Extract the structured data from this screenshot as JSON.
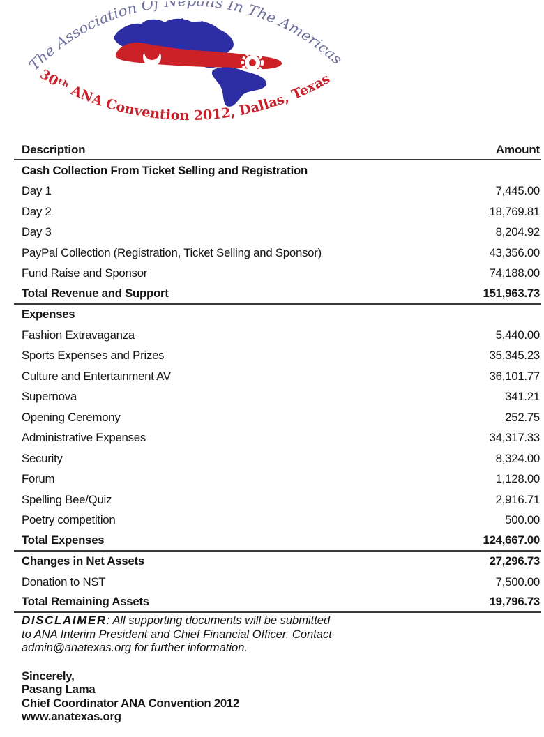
{
  "logo": {
    "arc_top_text": "The Association Of Nepalis In The Americas",
    "arc_bottom_text": "30ᵗʰ ANA Convention 2012, Dallas, Texas",
    "colors": {
      "map_blue": "#2d2da4",
      "map_red": "#cd2128",
      "arc_top_color": "#70709e",
      "arc_bottom_color": "#c7202a"
    }
  },
  "table": {
    "header": {
      "description": "Description",
      "amount": "Amount"
    },
    "rows": [
      {
        "label": "Cash Collection From Ticket Selling and Registration",
        "amount": "",
        "bold": true
      },
      {
        "label": "Day 1",
        "amount": "7,445.00"
      },
      {
        "label": "Day 2",
        "amount": "18,769.81"
      },
      {
        "label": "Day 3",
        "amount": "8,204.92"
      },
      {
        "label": "PayPal Collection (Registration, Ticket Selling and Sponsor)",
        "amount": "43,356.00"
      },
      {
        "label": "Fund Raise and Sponsor",
        "amount": "74,188.00"
      },
      {
        "label": "Total Revenue and Support",
        "amount": "151,963.73",
        "bold": true,
        "rule_below": true
      },
      {
        "label": "Expenses",
        "amount": "",
        "bold": true
      },
      {
        "label": "Fashion Extravaganza",
        "amount": "5,440.00"
      },
      {
        "label": "Sports Expenses and Prizes",
        "amount": "35,345.23"
      },
      {
        "label": "Culture and Entertainment AV",
        "amount": "36,101.77"
      },
      {
        "label": "Supernova",
        "amount": "341.21"
      },
      {
        "label": "Opening Ceremony",
        "amount": "252.75"
      },
      {
        "label": "Administrative Expenses",
        "amount": "34,317.33"
      },
      {
        "label": "Security",
        "amount": "8,324.00"
      },
      {
        "label": "Forum",
        "amount": "1,128.00"
      },
      {
        "label": "Spelling Bee/Quiz",
        "amount": "2,916.71"
      },
      {
        "label": "Poetry competition",
        "amount": "500.00"
      },
      {
        "label": "Total Expenses",
        "amount": "124,667.00",
        "bold": true,
        "rule_below": true
      },
      {
        "label": "Changes in Net Assets",
        "amount": "27,296.73",
        "bold": true
      },
      {
        "label": "Donation to NST",
        "amount": "7,500.00"
      },
      {
        "label": "Total Remaining Assets",
        "amount": "19,796.73",
        "bold": true,
        "rule_below": true
      }
    ]
  },
  "disclaimer": {
    "label": "DISCLAIMER",
    "text": ": All supporting documents will be submitted to ANA Interim President and Chief Financial Officer. Contact admin@anatexas.org for further information."
  },
  "signature": {
    "lines": [
      "Sincerely,",
      "Pasang Lama",
      "Chief Coordinator ANA Convention 2012",
      "www.anatexas.org"
    ]
  }
}
